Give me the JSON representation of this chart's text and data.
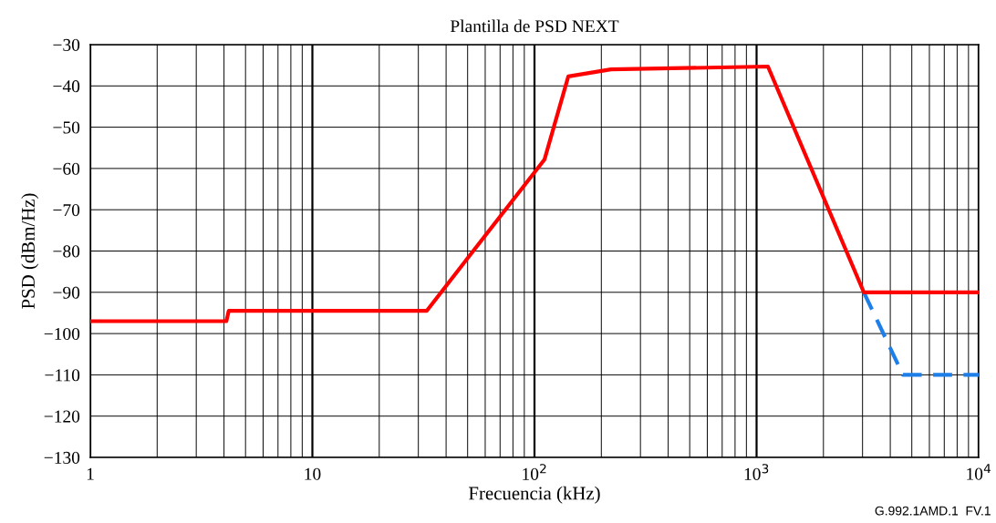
{
  "chart_data": {
    "type": "line",
    "title": "Plantilla de PSD NEXT",
    "xlabel": "Frecuencia (kHz)",
    "ylabel": "PSD (dBm/Hz)",
    "annotations": [
      "G.992.1AMD.1  FV.1"
    ],
    "log": "x",
    "grid": true,
    "legend": false,
    "marker": "none",
    "xlim": [
      1,
      10000
    ],
    "ylim": [
      -130,
      -30
    ],
    "xticks": [
      1,
      {
        "value": 2,
        "label": null
      },
      {
        "value": 3,
        "label": null
      },
      {
        "value": 4,
        "label": null
      },
      {
        "value": 5,
        "label": null
      },
      {
        "value": 6,
        "label": null
      },
      {
        "value": 7,
        "label": null
      },
      {
        "value": 8,
        "label": null
      },
      {
        "value": 9,
        "label": null
      },
      10,
      {
        "value": 20,
        "label": null
      },
      {
        "value": 30,
        "label": null
      },
      {
        "value": 40,
        "label": null
      },
      {
        "value": 50,
        "label": null
      },
      {
        "value": 60,
        "label": null
      },
      {
        "value": 70,
        "label": null
      },
      {
        "value": 80,
        "label": null
      },
      {
        "value": 90,
        "label": null
      },
      {
        "value": 100,
        "label": "10$^{2}$"
      },
      {
        "value": 200,
        "label": null
      },
      {
        "value": 300,
        "label": null
      },
      {
        "value": 400,
        "label": null
      },
      {
        "value": 500,
        "label": null
      },
      {
        "value": 600,
        "label": null
      },
      {
        "value": 700,
        "label": null
      },
      {
        "value": 800,
        "label": null
      },
      {
        "value": 900,
        "label": null
      },
      {
        "value": 1000,
        "label": "10$^{3}$"
      },
      {
        "value": 2000,
        "label": null
      },
      {
        "value": 3000,
        "label": null
      },
      {
        "value": 4000,
        "label": null
      },
      {
        "value": 5000,
        "label": null
      },
      {
        "value": 6000,
        "label": null
      },
      {
        "value": 7000,
        "label": null
      },
      {
        "value": 8000,
        "label": null
      },
      {
        "value": 9000,
        "label": null
      },
      {
        "value": 10000,
        "label": "10$^{4}$"
      }
    ],
    "yticks": [
      {
        "value": -130,
        "label": "−130"
      },
      {
        "value": -120,
        "label": "−120"
      },
      {
        "value": -110,
        "label": "−110"
      },
      {
        "value": -100,
        "label": "−100"
      },
      {
        "value": -90,
        "label": "−90"
      },
      {
        "value": -80,
        "label": "−80"
      },
      {
        "value": -70,
        "label": "−70"
      },
      {
        "value": -60,
        "label": "−60"
      },
      {
        "value": -50,
        "label": "−50"
      },
      {
        "value": -40,
        "label": "−40"
      },
      {
        "value": -30,
        "label": "−30"
      }
    ],
    "series": [
      {
        "color": "#1e7fe8",
        "line_style": "dashed",
        "x": [
          3040,
          4560,
          10000
        ],
        "values": [
          -90,
          -110,
          -110
        ]
      },
      {
        "color": "#ff0000",
        "line_style": "solid",
        "x": [
          1,
          4.1,
          4.2,
          32.7,
          111,
          142,
          221,
          1125,
          3040,
          10000
        ],
        "values": [
          -97,
          -97,
          -94.5,
          -94.5,
          -57.8,
          -37.7,
          -36,
          -35.3,
          -90,
          -90
        ]
      }
    ]
  }
}
